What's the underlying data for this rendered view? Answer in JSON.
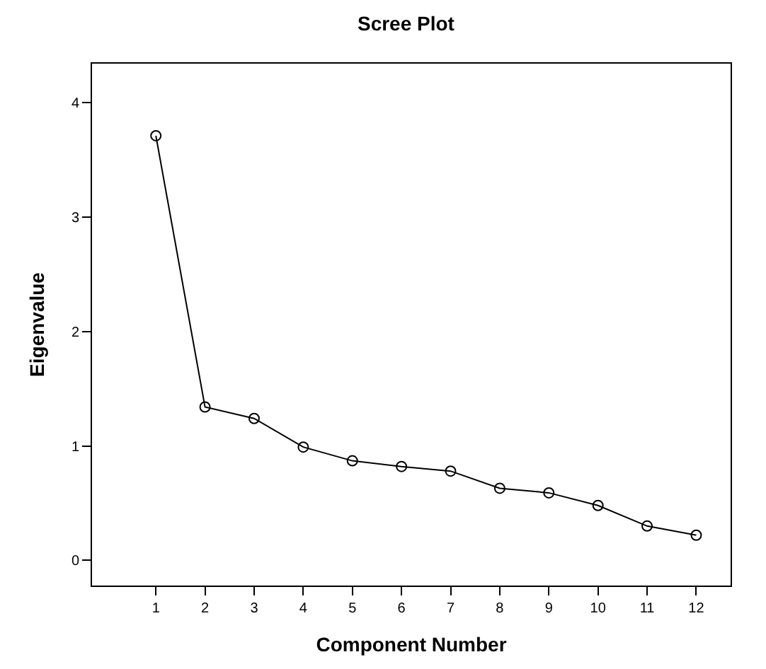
{
  "chart_data": {
    "type": "line",
    "title": "Scree Plot",
    "xlabel": "Component Number",
    "ylabel": "Eigenvalue",
    "x": [
      1,
      2,
      3,
      4,
      5,
      6,
      7,
      8,
      9,
      10,
      11,
      12
    ],
    "series": [
      {
        "color": "#000000",
        "values": [
          3.71,
          1.34,
          1.24,
          0.99,
          0.87,
          0.82,
          0.78,
          0.63,
          0.59,
          0.48,
          0.3,
          0.22
        ]
      }
    ],
    "xlim": [
      -0.3,
      12.7
    ],
    "xticks": [
      1,
      2,
      3,
      4,
      5,
      6,
      7,
      8,
      9,
      10,
      11,
      12
    ],
    "ylim": [
      -0.22,
      4.34
    ],
    "yticks": [
      0,
      1,
      2,
      3,
      4
    ],
    "marker": "circle",
    "line_style": "solid"
  }
}
